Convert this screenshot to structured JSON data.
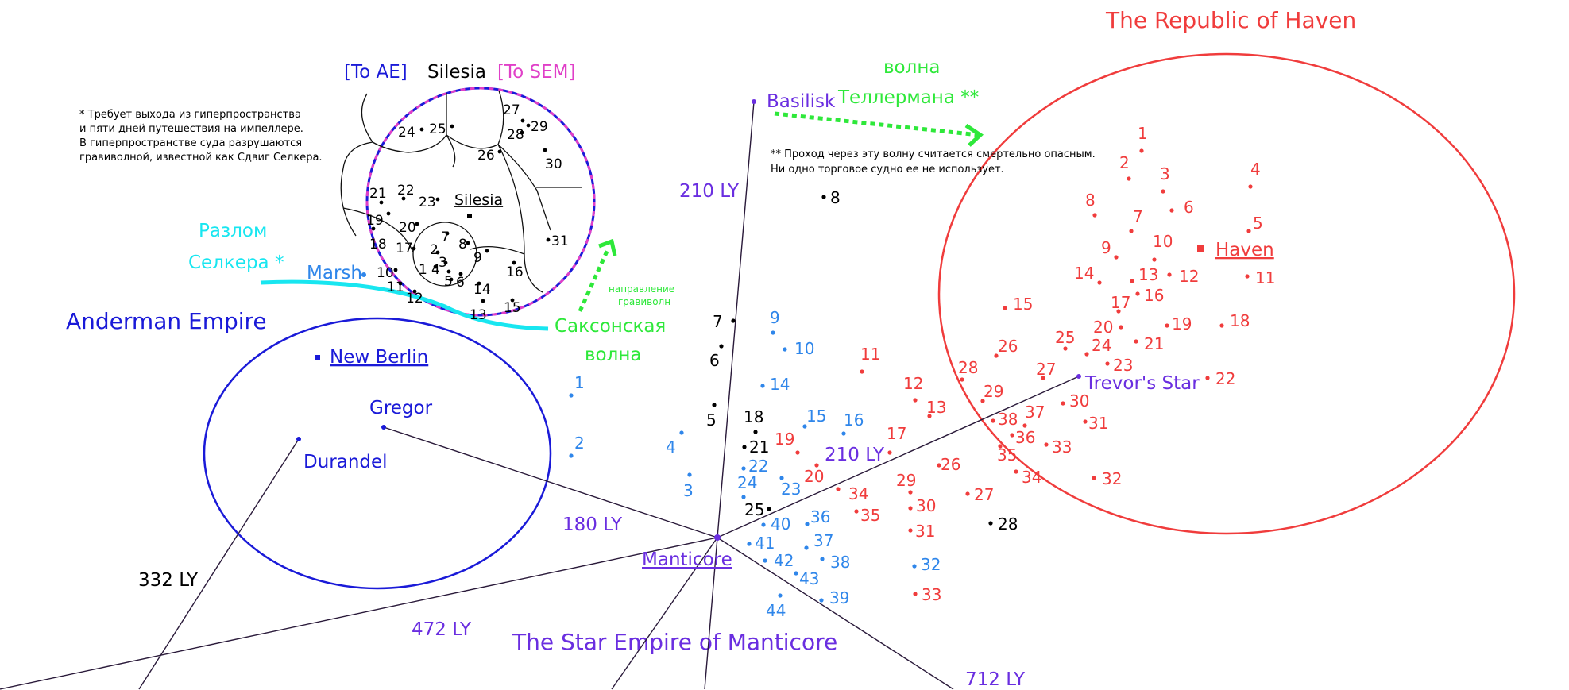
{
  "map": {
    "colors": {
      "haven": "#f03c3c",
      "manticore": "#6a2ee0",
      "blue": "#1a1ad8",
      "lightblue": "#2f86ea",
      "cyan": "#18e6f0",
      "green": "#2ee83a",
      "magenta": "#e040c8",
      "black": "#000000"
    },
    "titles": {
      "haven": "The Republic of Haven",
      "manticore": "The Star Empire of Manticore",
      "anderman": "Anderman Empire"
    },
    "silesia": {
      "to_ae": "[To AE]",
      "name": "Silesia",
      "to_sem": "[To SEM]",
      "center": "Silesia",
      "footnote_lines": [
        "* Требует выхода из гиперпространства",
        "и пяти дней путешествия на импеллере.",
        "В гиперпространстве суда разрушаются",
        "гравиволной, известной как Сдвиг Селкера."
      ]
    },
    "anomalies": {
      "selker_rift": [
        "Разлом",
        "Селкера *"
      ],
      "saxon_wave": [
        "Саксонская",
        "волна"
      ],
      "teller_wave": [
        "волна",
        "Теллермана **"
      ],
      "wave_direction": [
        "направление",
        "гравиволн"
      ],
      "teller_note": [
        "** Проход через эту волну считается смертельно опасным.",
        "Ни одно торговое судно ее не использует."
      ]
    },
    "places": {
      "basilisk": "Basilisk",
      "haven": "Haven",
      "trevors_star": "Trevor's Star",
      "manticore": "Manticore",
      "new_berlin": "New Berlin",
      "gregor": "Gregor",
      "durandel": "Durandel",
      "marsh": "Marsh"
    },
    "distances": {
      "basilisk": "210 LY",
      "trevor": "210 LY",
      "gregor": "180 LY",
      "durandel": "332 LY",
      "west": "472 LY",
      "southeast": "712 LY"
    }
  }
}
